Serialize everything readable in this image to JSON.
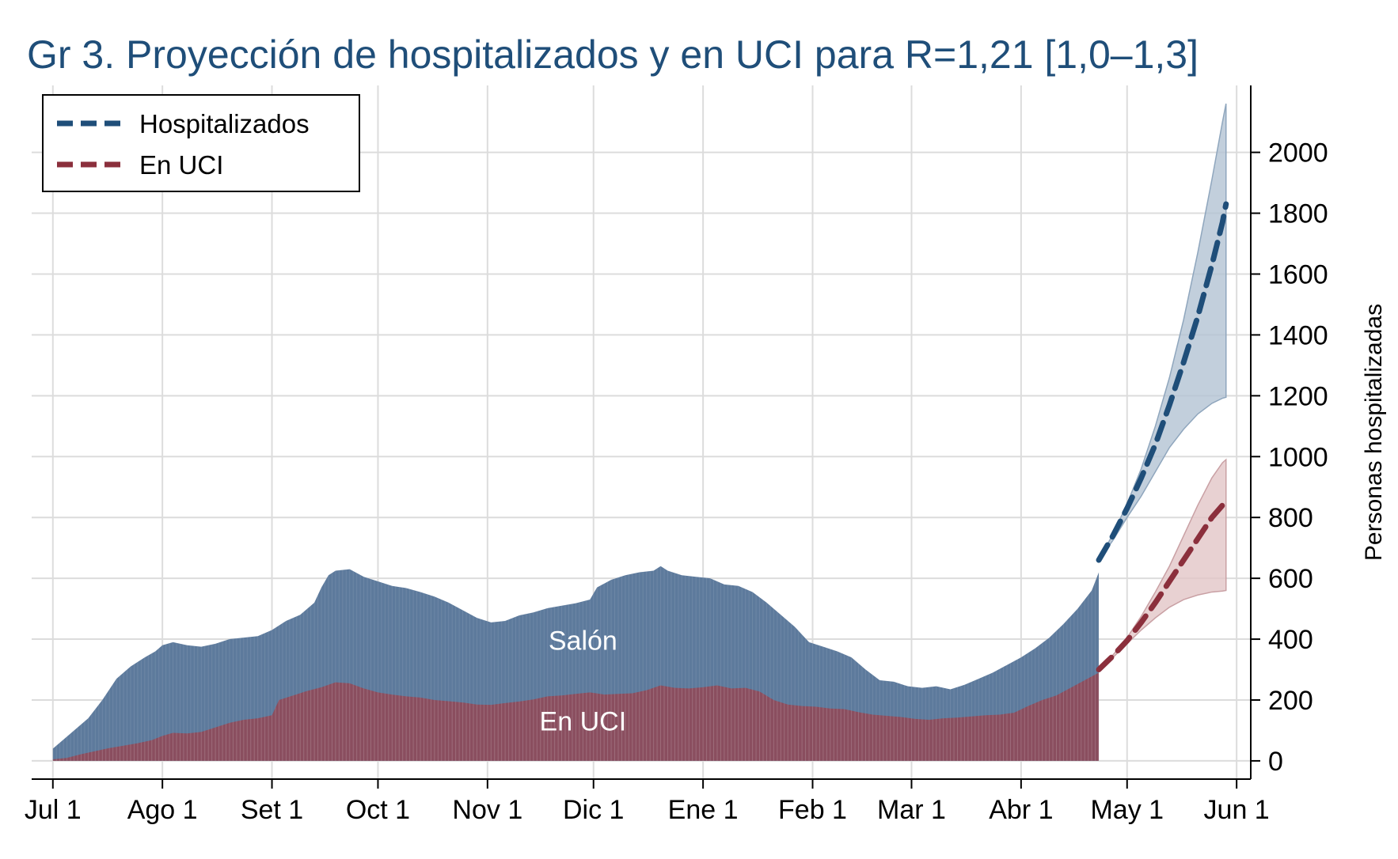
{
  "chart_data": {
    "type": "area",
    "title": "Gr 3. Proyección de hospitalizados y en UCI para R=1,21 [1,0–1,3]",
    "ylabel": "Personas hospitalizadas",
    "ylim": [
      -60,
      2220
    ],
    "y_ticks": [
      0,
      200,
      400,
      600,
      800,
      1000,
      1200,
      1400,
      1600,
      1800,
      2000
    ],
    "x_ticks": [
      {
        "day": 0,
        "label": "Jul 1"
      },
      {
        "day": 31,
        "label": "Ago 1"
      },
      {
        "day": 62,
        "label": "Set 1"
      },
      {
        "day": 92,
        "label": "Oct 1"
      },
      {
        "day": 123,
        "label": "Nov 1"
      },
      {
        "day": 153,
        "label": "Dic 1"
      },
      {
        "day": 184,
        "label": "Ene 1"
      },
      {
        "day": 215,
        "label": "Feb 1"
      },
      {
        "day": 243,
        "label": "Mar 1"
      },
      {
        "day": 274,
        "label": "Abr 1"
      },
      {
        "day": 304,
        "label": "May 1"
      },
      {
        "day": 335,
        "label": "Jun 1"
      }
    ],
    "xlim_days": [
      -6,
      339
    ],
    "area_labels": {
      "salon": "Salón",
      "uci": "En UCI"
    },
    "legend": {
      "position": "top-left",
      "items": [
        {
          "name": "Hospitalizados",
          "color": "#1f4e79"
        },
        {
          "name": "En UCI",
          "color": "#8b2f3c"
        }
      ]
    },
    "colors": {
      "hospitalizados_area": "#5d7a9c",
      "uci_area": "#8a4e5f",
      "hosp_projection": "#1f4e79",
      "uci_projection": "#8b2f3c",
      "hosp_band": "#b3c3d3",
      "uci_band": "#e2c5c7",
      "grid": "#dcdcdc"
    },
    "series": [
      {
        "name": "Hospitalizados",
        "kind": "observed",
        "points": [
          [
            0,
            40
          ],
          [
            3,
            70
          ],
          [
            6,
            100
          ],
          [
            10,
            140
          ],
          [
            14,
            200
          ],
          [
            18,
            270
          ],
          [
            22,
            310
          ],
          [
            26,
            340
          ],
          [
            29,
            360
          ],
          [
            31,
            380
          ],
          [
            34,
            390
          ],
          [
            38,
            380
          ],
          [
            42,
            375
          ],
          [
            46,
            385
          ],
          [
            50,
            400
          ],
          [
            54,
            405
          ],
          [
            58,
            410
          ],
          [
            62,
            430
          ],
          [
            66,
            460
          ],
          [
            70,
            480
          ],
          [
            74,
            520
          ],
          [
            76,
            570
          ],
          [
            78,
            610
          ],
          [
            80,
            625
          ],
          [
            84,
            630
          ],
          [
            88,
            605
          ],
          [
            92,
            590
          ],
          [
            96,
            575
          ],
          [
            100,
            568
          ],
          [
            104,
            555
          ],
          [
            108,
            540
          ],
          [
            112,
            520
          ],
          [
            116,
            495
          ],
          [
            120,
            470
          ],
          [
            124,
            455
          ],
          [
            128,
            460
          ],
          [
            132,
            478
          ],
          [
            136,
            488
          ],
          [
            140,
            502
          ],
          [
            144,
            510
          ],
          [
            148,
            518
          ],
          [
            152,
            530
          ],
          [
            154,
            570
          ],
          [
            158,
            595
          ],
          [
            162,
            610
          ],
          [
            166,
            620
          ],
          [
            170,
            625
          ],
          [
            172,
            640
          ],
          [
            174,
            625
          ],
          [
            178,
            610
          ],
          [
            182,
            605
          ],
          [
            186,
            600
          ],
          [
            190,
            580
          ],
          [
            194,
            575
          ],
          [
            198,
            555
          ],
          [
            202,
            520
          ],
          [
            206,
            480
          ],
          [
            210,
            440
          ],
          [
            214,
            390
          ],
          [
            218,
            375
          ],
          [
            222,
            360
          ],
          [
            226,
            340
          ],
          [
            230,
            300
          ],
          [
            234,
            265
          ],
          [
            238,
            260
          ],
          [
            242,
            245
          ],
          [
            246,
            240
          ],
          [
            250,
            245
          ],
          [
            254,
            235
          ],
          [
            258,
            250
          ],
          [
            262,
            270
          ],
          [
            266,
            290
          ],
          [
            270,
            315
          ],
          [
            274,
            340
          ],
          [
            278,
            370
          ],
          [
            282,
            405
          ],
          [
            286,
            450
          ],
          [
            290,
            500
          ],
          [
            294,
            560
          ],
          [
            296,
            620
          ]
        ]
      },
      {
        "name": "En UCI",
        "kind": "observed",
        "points": [
          [
            0,
            5
          ],
          [
            4,
            10
          ],
          [
            8,
            22
          ],
          [
            12,
            32
          ],
          [
            16,
            42
          ],
          [
            20,
            50
          ],
          [
            24,
            58
          ],
          [
            28,
            68
          ],
          [
            31,
            82
          ],
          [
            34,
            92
          ],
          [
            38,
            90
          ],
          [
            42,
            95
          ],
          [
            46,
            110
          ],
          [
            50,
            125
          ],
          [
            54,
            135
          ],
          [
            58,
            140
          ],
          [
            62,
            150
          ],
          [
            64,
            200
          ],
          [
            68,
            215
          ],
          [
            72,
            230
          ],
          [
            76,
            242
          ],
          [
            80,
            258
          ],
          [
            84,
            255
          ],
          [
            88,
            238
          ],
          [
            92,
            225
          ],
          [
            96,
            218
          ],
          [
            100,
            212
          ],
          [
            104,
            208
          ],
          [
            108,
            200
          ],
          [
            112,
            196
          ],
          [
            116,
            192
          ],
          [
            120,
            185
          ],
          [
            124,
            184
          ],
          [
            128,
            190
          ],
          [
            132,
            195
          ],
          [
            136,
            202
          ],
          [
            140,
            212
          ],
          [
            144,
            215
          ],
          [
            148,
            220
          ],
          [
            152,
            225
          ],
          [
            156,
            218
          ],
          [
            160,
            220
          ],
          [
            164,
            222
          ],
          [
            168,
            232
          ],
          [
            172,
            248
          ],
          [
            176,
            240
          ],
          [
            180,
            238
          ],
          [
            184,
            242
          ],
          [
            188,
            248
          ],
          [
            192,
            238
          ],
          [
            196,
            240
          ],
          [
            200,
            228
          ],
          [
            204,
            200
          ],
          [
            208,
            185
          ],
          [
            212,
            180
          ],
          [
            216,
            178
          ],
          [
            220,
            172
          ],
          [
            224,
            170
          ],
          [
            228,
            160
          ],
          [
            232,
            152
          ],
          [
            236,
            148
          ],
          [
            240,
            144
          ],
          [
            244,
            138
          ],
          [
            248,
            135
          ],
          [
            252,
            140
          ],
          [
            256,
            142
          ],
          [
            260,
            146
          ],
          [
            264,
            150
          ],
          [
            268,
            152
          ],
          [
            272,
            158
          ],
          [
            276,
            180
          ],
          [
            280,
            200
          ],
          [
            284,
            215
          ],
          [
            288,
            240
          ],
          [
            292,
            265
          ],
          [
            296,
            290
          ]
        ]
      },
      {
        "name": "Hospitalizados",
        "kind": "projection",
        "points": [
          [
            296,
            660
          ],
          [
            300,
            740
          ],
          [
            304,
            830
          ],
          [
            308,
            930
          ],
          [
            312,
            1040
          ],
          [
            316,
            1170
          ],
          [
            320,
            1310
          ],
          [
            324,
            1460
          ],
          [
            328,
            1630
          ],
          [
            331,
            1770
          ],
          [
            332,
            1830
          ]
        ],
        "band_upper": [
          [
            296,
            660
          ],
          [
            300,
            745
          ],
          [
            304,
            845
          ],
          [
            308,
            960
          ],
          [
            312,
            1100
          ],
          [
            316,
            1260
          ],
          [
            320,
            1450
          ],
          [
            324,
            1670
          ],
          [
            328,
            1910
          ],
          [
            331,
            2100
          ],
          [
            332,
            2160
          ]
        ],
        "band_lower": [
          [
            296,
            660
          ],
          [
            300,
            725
          ],
          [
            304,
            800
          ],
          [
            308,
            870
          ],
          [
            312,
            950
          ],
          [
            316,
            1030
          ],
          [
            320,
            1090
          ],
          [
            324,
            1140
          ],
          [
            328,
            1175
          ],
          [
            331,
            1192
          ],
          [
            332,
            1195
          ]
        ]
      },
      {
        "name": "En UCI",
        "kind": "projection",
        "points": [
          [
            296,
            300
          ],
          [
            300,
            345
          ],
          [
            304,
            395
          ],
          [
            308,
            455
          ],
          [
            312,
            520
          ],
          [
            316,
            590
          ],
          [
            320,
            660
          ],
          [
            324,
            730
          ],
          [
            328,
            800
          ],
          [
            331,
            840
          ],
          [
            332,
            850
          ]
        ],
        "band_upper": [
          [
            296,
            300
          ],
          [
            300,
            348
          ],
          [
            304,
            405
          ],
          [
            308,
            475
          ],
          [
            312,
            555
          ],
          [
            316,
            640
          ],
          [
            320,
            740
          ],
          [
            324,
            840
          ],
          [
            328,
            930
          ],
          [
            331,
            980
          ],
          [
            332,
            990
          ]
        ],
        "band_lower": [
          [
            296,
            300
          ],
          [
            300,
            340
          ],
          [
            304,
            385
          ],
          [
            308,
            430
          ],
          [
            312,
            470
          ],
          [
            316,
            505
          ],
          [
            320,
            530
          ],
          [
            324,
            545
          ],
          [
            328,
            555
          ],
          [
            331,
            558
          ],
          [
            332,
            560
          ]
        ]
      }
    ]
  }
}
